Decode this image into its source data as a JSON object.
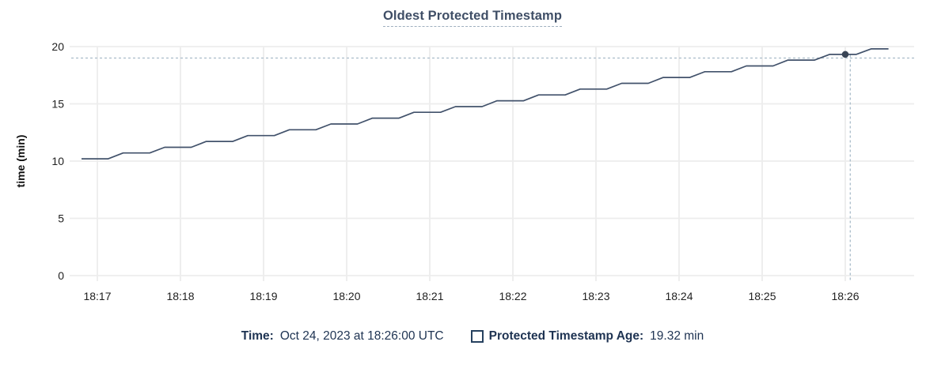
{
  "title": "Oldest Protected Timestamp",
  "colors": {
    "title_text": "#3f4e66",
    "series_line": "#42526b",
    "highlight_dot": "#394455",
    "gridline": "#ededed",
    "crosshair": "#a9bcc9",
    "axis_text": "#1f1f1f",
    "legend_text": "#1e3352"
  },
  "chart_data": {
    "type": "line",
    "title": "Oldest Protected Timestamp",
    "xlabel": "",
    "ylabel": "time (min)",
    "grid": true,
    "ylim": [
      0,
      20
    ],
    "y_ticks": [
      0,
      5,
      10,
      15,
      20
    ],
    "x_ticks": [
      "18:17",
      "18:18",
      "18:19",
      "18:20",
      "18:21",
      "18:22",
      "18:23",
      "18:24",
      "18:25",
      "18:26"
    ],
    "x_note": "points use minutes offset from 18:17",
    "series": [
      {
        "name": "Protected Timestamp Age",
        "unit": "min",
        "points": [
          [
            -0.19,
            10.2
          ],
          [
            0.13,
            10.2
          ],
          [
            0.31,
            10.71
          ],
          [
            0.63,
            10.71
          ],
          [
            0.81,
            11.21
          ],
          [
            1.13,
            11.21
          ],
          [
            1.31,
            11.72
          ],
          [
            1.63,
            11.72
          ],
          [
            1.81,
            12.23
          ],
          [
            2.13,
            12.23
          ],
          [
            2.31,
            12.74
          ],
          [
            2.63,
            12.74
          ],
          [
            2.81,
            13.24
          ],
          [
            3.13,
            13.24
          ],
          [
            3.31,
            13.75
          ],
          [
            3.63,
            13.75
          ],
          [
            3.81,
            14.26
          ],
          [
            4.13,
            14.26
          ],
          [
            4.31,
            14.76
          ],
          [
            4.63,
            14.76
          ],
          [
            4.81,
            15.27
          ],
          [
            5.13,
            15.27
          ],
          [
            5.31,
            15.78
          ],
          [
            5.63,
            15.78
          ],
          [
            5.81,
            16.29
          ],
          [
            6.13,
            16.29
          ],
          [
            6.31,
            16.79
          ],
          [
            6.63,
            16.79
          ],
          [
            6.81,
            17.3
          ],
          [
            7.13,
            17.3
          ],
          [
            7.31,
            17.81
          ],
          [
            7.63,
            17.81
          ],
          [
            7.81,
            18.31
          ],
          [
            8.13,
            18.31
          ],
          [
            8.31,
            18.82
          ],
          [
            8.63,
            18.82
          ],
          [
            8.81,
            19.32
          ],
          [
            9.13,
            19.32
          ],
          [
            9.31,
            19.8
          ],
          [
            9.52,
            19.8
          ]
        ]
      }
    ],
    "highlight_point": {
      "x": 9.0,
      "y": 19.32,
      "time": "18:26:00",
      "value_label": "19.32 min"
    },
    "crosshair": {
      "x": 9.06,
      "y": 19.0
    },
    "legend_position": "bottom"
  },
  "tooltip": {
    "time_label": "Time:",
    "time_value": "Oct 24, 2023 at 18:26:00 UTC",
    "series_label": "Protected Timestamp Age:",
    "series_value": "19.32 min",
    "series_box_icon": "series-checkbox"
  }
}
